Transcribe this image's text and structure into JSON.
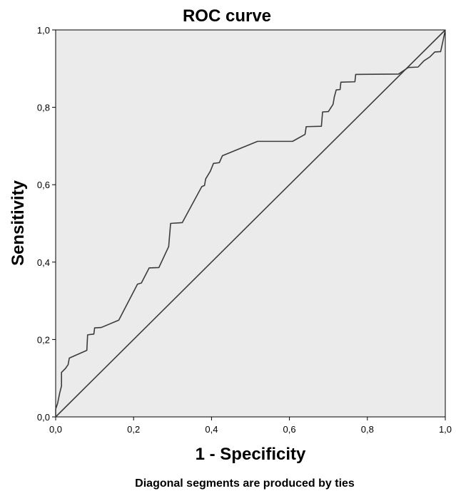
{
  "chart_data": {
    "type": "line",
    "title": "ROC curve",
    "xlabel": "1 - Specificity",
    "ylabel": "Sensitivity",
    "xlim": [
      0,
      1
    ],
    "ylim": [
      0,
      1
    ],
    "x_ticks": [
      "0,0",
      "0,2",
      "0,4",
      "0,6",
      "0,8",
      "1,0"
    ],
    "y_ticks": [
      "0,0",
      "0,2",
      "0,4",
      "0,6",
      "0,8",
      "1,0"
    ],
    "grid": false,
    "plot_background": "#ebebeb",
    "line_color": "#3c3c3c",
    "footnote": "Diagonal segments are produced by ties",
    "series": [
      {
        "points": [
          [
            0.0,
            0.0
          ],
          [
            0.0,
            0.02
          ],
          [
            0.005,
            0.035
          ],
          [
            0.01,
            0.06
          ],
          [
            0.015,
            0.08
          ],
          [
            0.015,
            0.115
          ],
          [
            0.025,
            0.125
          ],
          [
            0.032,
            0.135
          ],
          [
            0.035,
            0.152
          ],
          [
            0.08,
            0.172
          ],
          [
            0.082,
            0.212
          ],
          [
            0.098,
            0.214
          ],
          [
            0.1,
            0.23
          ],
          [
            0.117,
            0.231
          ],
          [
            0.162,
            0.25
          ],
          [
            0.21,
            0.343
          ],
          [
            0.22,
            0.346
          ],
          [
            0.24,
            0.385
          ],
          [
            0.265,
            0.386
          ],
          [
            0.29,
            0.44
          ],
          [
            0.295,
            0.5
          ],
          [
            0.325,
            0.502
          ],
          [
            0.375,
            0.595
          ],
          [
            0.382,
            0.598
          ],
          [
            0.385,
            0.615
          ],
          [
            0.397,
            0.635
          ],
          [
            0.405,
            0.655
          ],
          [
            0.42,
            0.657
          ],
          [
            0.428,
            0.675
          ],
          [
            0.518,
            0.712
          ],
          [
            0.608,
            0.712
          ],
          [
            0.64,
            0.73
          ],
          [
            0.643,
            0.75
          ],
          [
            0.682,
            0.751
          ],
          [
            0.685,
            0.788
          ],
          [
            0.7,
            0.789
          ],
          [
            0.712,
            0.808
          ],
          [
            0.715,
            0.826
          ],
          [
            0.72,
            0.845
          ],
          [
            0.73,
            0.846
          ],
          [
            0.732,
            0.865
          ],
          [
            0.768,
            0.866
          ],
          [
            0.77,
            0.885
          ],
          [
            0.88,
            0.886
          ],
          [
            0.905,
            0.903
          ],
          [
            0.93,
            0.904
          ],
          [
            0.945,
            0.92
          ],
          [
            0.96,
            0.93
          ],
          [
            0.973,
            0.943
          ],
          [
            0.988,
            0.944
          ],
          [
            0.992,
            0.962
          ],
          [
            1.0,
            1.0
          ]
        ]
      },
      {
        "points": [
          [
            0,
            0
          ],
          [
            1,
            1
          ]
        ]
      }
    ]
  }
}
